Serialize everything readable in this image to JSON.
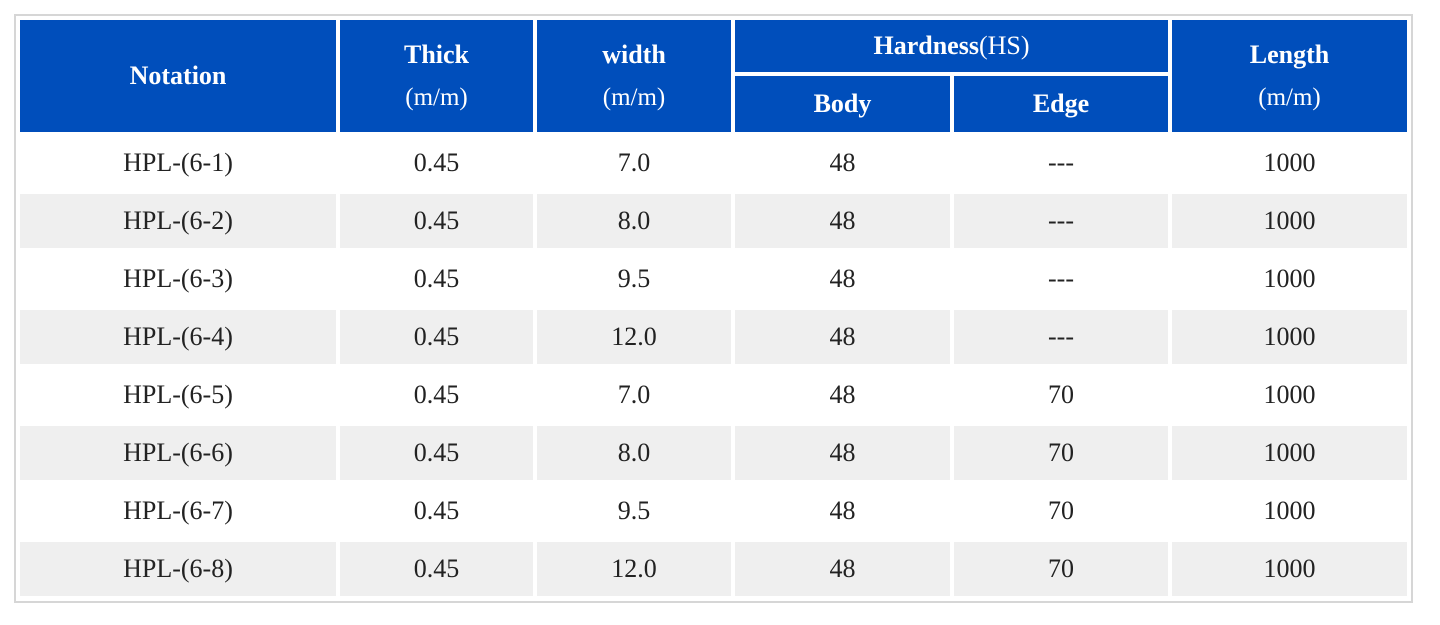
{
  "table": {
    "headers": {
      "notation": "Notation",
      "thick": "Thick",
      "thick_unit": "(m/m)",
      "width": "width",
      "width_unit": "(m/m)",
      "hardness": "Hardness",
      "hardness_unit": "(HS)",
      "body": "Body",
      "edge": "Edge",
      "length": "Length",
      "length_unit": "(m/m)"
    },
    "rows": [
      {
        "notation": "HPL-(6-1)",
        "thick": "0.45",
        "width": "7.0",
        "body": "48",
        "edge": "---",
        "length": "1000"
      },
      {
        "notation": "HPL-(6-2)",
        "thick": "0.45",
        "width": "8.0",
        "body": "48",
        "edge": "---",
        "length": "1000"
      },
      {
        "notation": "HPL-(6-3)",
        "thick": "0.45",
        "width": "9.5",
        "body": "48",
        "edge": "---",
        "length": "1000"
      },
      {
        "notation": "HPL-(6-4)",
        "thick": "0.45",
        "width": "12.0",
        "body": "48",
        "edge": "---",
        "length": "1000"
      },
      {
        "notation": "HPL-(6-5)",
        "thick": "0.45",
        "width": "7.0",
        "body": "48",
        "edge": "70",
        "length": "1000"
      },
      {
        "notation": "HPL-(6-6)",
        "thick": "0.45",
        "width": "8.0",
        "body": "48",
        "edge": "70",
        "length": "1000"
      },
      {
        "notation": "HPL-(6-7)",
        "thick": "0.45",
        "width": "9.5",
        "body": "48",
        "edge": "70",
        "length": "1000"
      },
      {
        "notation": "HPL-(6-8)",
        "thick": "0.45",
        "width": "12.0",
        "body": "48",
        "edge": "70",
        "length": "1000"
      }
    ]
  },
  "colors": {
    "header_background": "#004ebb",
    "header_text": "#ffffff",
    "row_stripe": "#efefef",
    "frame_border": "#d6d6d6"
  }
}
